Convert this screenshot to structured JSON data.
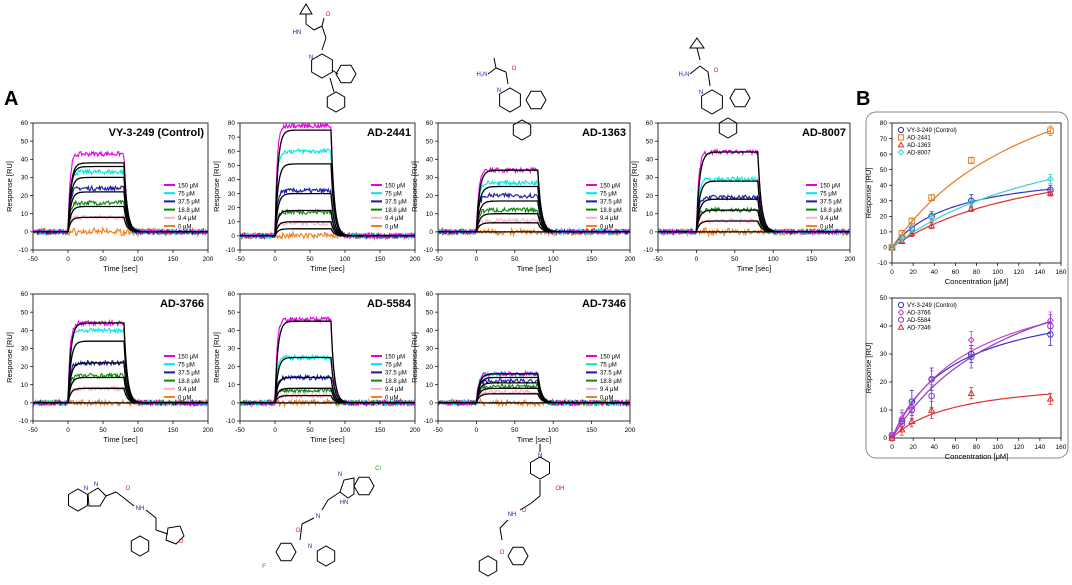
{
  "panel_labels": [
    "A",
    "B"
  ],
  "colors": {
    "c150": "#e600e6",
    "c75": "#00e5e5",
    "c37": "#1a1aa6",
    "c18": "#0a8a0a",
    "c9": "#ffb0c8",
    "c0": "#f08020",
    "fit": "#000000"
  },
  "chart_data": [
    {
      "id": "vy",
      "type": "line",
      "title": "VY-3-249 (Control)",
      "xlabel": "Time [sec]",
      "ylabel": "Response [RU]",
      "xlim": [
        -50,
        200
      ],
      "ylim": [
        -10,
        60
      ],
      "xticks": [
        -50,
        0,
        50,
        100,
        150,
        200
      ],
      "yticks": [
        -10,
        0,
        10,
        20,
        30,
        40,
        50,
        60
      ],
      "legend_position": "right",
      "assoc_start": 0,
      "assoc_end": 80,
      "series": [
        {
          "name": "150 μM",
          "color_key": "c150",
          "plateau": 43,
          "fit": 38
        },
        {
          "name": "75 μM",
          "color_key": "c75",
          "plateau": 33,
          "fit": 36
        },
        {
          "name": "37.5 μM",
          "color_key": "c37",
          "plateau": 24,
          "fit": 30
        },
        {
          "name": "18.8 μM",
          "color_key": "c18",
          "plateau": 16,
          "fit": 22
        },
        {
          "name": "9.4 μM",
          "color_key": "c9",
          "plateau": 8,
          "fit": 14
        },
        {
          "name": "0 μM",
          "color_key": "c0",
          "plateau": 0,
          "fit": 8
        }
      ]
    },
    {
      "id": "ad2441",
      "type": "line",
      "title": "AD-2441",
      "xlabel": "Time [sec]",
      "ylabel": "Response [RU]",
      "xlim": [
        -50,
        200
      ],
      "ylim": [
        -10,
        80
      ],
      "xticks": [
        -50,
        0,
        50,
        100,
        150,
        200
      ],
      "yticks": [
        -10,
        0,
        10,
        20,
        30,
        40,
        50,
        60,
        70,
        80
      ],
      "legend_position": "right",
      "assoc_start": 0,
      "assoc_end": 80,
      "series": [
        {
          "name": "150 μM",
          "color_key": "c150",
          "plateau": 78,
          "fit": 75
        },
        {
          "name": "75 μM",
          "color_key": "c75",
          "plateau": 60,
          "fit": 51
        },
        {
          "name": "37.5 μM",
          "color_key": "c37",
          "plateau": 32,
          "fit": 30
        },
        {
          "name": "18.8 μM",
          "color_key": "c18",
          "plateau": 17,
          "fit": 18
        },
        {
          "name": "9.4 μM",
          "color_key": "c9",
          "plateau": 9,
          "fit": 10
        },
        {
          "name": "0 μM",
          "color_key": "c0",
          "plateau": 0,
          "fit": 5
        }
      ]
    },
    {
      "id": "ad1363",
      "type": "line",
      "title": "AD-1363",
      "xlabel": "Time [sec]",
      "ylabel": "Response [RU]",
      "xlim": [
        -50,
        200
      ],
      "ylim": [
        -10,
        60
      ],
      "xticks": [
        -50,
        0,
        50,
        100,
        150,
        200
      ],
      "yticks": [
        -10,
        0,
        10,
        20,
        30,
        40,
        50,
        60
      ],
      "legend_position": "right",
      "assoc_start": 0,
      "assoc_end": 80,
      "series": [
        {
          "name": "150 μM",
          "color_key": "c150",
          "plateau": 34,
          "fit": 34
        },
        {
          "name": "75 μM",
          "color_key": "c75",
          "plateau": 27,
          "fit": 25
        },
        {
          "name": "37.5 μM",
          "color_key": "c37",
          "plateau": 20,
          "fit": 17
        },
        {
          "name": "18.8 μM",
          "color_key": "c18",
          "plateau": 12,
          "fit": 10
        },
        {
          "name": "9.4 μM",
          "color_key": "c9",
          "plateau": 6,
          "fit": 5
        },
        {
          "name": "0 μM",
          "color_key": "c0",
          "plateau": 0,
          "fit": 0
        }
      ]
    },
    {
      "id": "ad8007",
      "type": "line",
      "title": "AD-8007",
      "xlabel": "Time [sec]",
      "ylabel": "Response [RU]",
      "xlim": [
        -50,
        200
      ],
      "ylim": [
        -10,
        60
      ],
      "xticks": [
        -50,
        0,
        50,
        100,
        150,
        200
      ],
      "yticks": [
        -10,
        0,
        10,
        20,
        30,
        40,
        50,
        60
      ],
      "legend_position": "right",
      "assoc_start": 0,
      "assoc_end": 80,
      "series": [
        {
          "name": "150 μM",
          "color_key": "c150",
          "plateau": 44,
          "fit": 44
        },
        {
          "name": "75 μM",
          "color_key": "c75",
          "plateau": 29,
          "fit": 28
        },
        {
          "name": "37.5 μM",
          "color_key": "c37",
          "plateau": 19,
          "fit": 18
        },
        {
          "name": "18.8 μM",
          "color_key": "c18",
          "plateau": 12,
          "fit": 12
        },
        {
          "name": "9.4 μM",
          "color_key": "c9",
          "plateau": 6,
          "fit": 6
        },
        {
          "name": "0 μM",
          "color_key": "c0",
          "plateau": 0,
          "fit": 0
        }
      ]
    },
    {
      "id": "ad3766",
      "type": "line",
      "title": "AD-3766",
      "xlabel": "Time [sec]",
      "ylabel": "Response [RU]",
      "xlim": [
        -50,
        200
      ],
      "ylim": [
        -10,
        60
      ],
      "xticks": [
        -50,
        0,
        50,
        100,
        150,
        200
      ],
      "yticks": [
        -10,
        0,
        10,
        20,
        30,
        40,
        50,
        60
      ],
      "legend_position": "right",
      "assoc_start": 0,
      "assoc_end": 80,
      "series": [
        {
          "name": "150 μM",
          "color_key": "c150",
          "plateau": 44,
          "fit": 44
        },
        {
          "name": "75 μM",
          "color_key": "c75",
          "plateau": 40,
          "fit": 34
        },
        {
          "name": "37.5 μM",
          "color_key": "c37",
          "plateau": 22,
          "fit": 22
        },
        {
          "name": "18.8 μM",
          "color_key": "c18",
          "plateau": 15,
          "fit": 14
        },
        {
          "name": "9.4 μM",
          "color_key": "c9",
          "plateau": 8,
          "fit": 8
        },
        {
          "name": "0 μM",
          "color_key": "c0",
          "plateau": 0,
          "fit": 0
        }
      ]
    },
    {
      "id": "ad5584",
      "type": "line",
      "title": "AD-5584",
      "xlabel": "Time [sec]",
      "ylabel": "Response [RU]",
      "xlim": [
        -50,
        200
      ],
      "ylim": [
        -10,
        60
      ],
      "xticks": [
        -50,
        0,
        50,
        100,
        150,
        200
      ],
      "yticks": [
        -10,
        0,
        10,
        20,
        30,
        40,
        50,
        60
      ],
      "legend_position": "right",
      "assoc_start": 0,
      "assoc_end": 80,
      "series": [
        {
          "name": "150 μM",
          "color_key": "c150",
          "plateau": 46,
          "fit": 45
        },
        {
          "name": "75 μM",
          "color_key": "c75",
          "plateau": 25,
          "fit": 25
        },
        {
          "name": "37.5 μM",
          "color_key": "c37",
          "plateau": 14,
          "fit": 14
        },
        {
          "name": "18.8 μM",
          "color_key": "c18",
          "plateau": 7,
          "fit": 8
        },
        {
          "name": "9.4 μM",
          "color_key": "c9",
          "plateau": 4,
          "fit": 4
        },
        {
          "name": "0 μM",
          "color_key": "c0",
          "plateau": 0,
          "fit": 0
        }
      ]
    },
    {
      "id": "ad7346",
      "type": "line",
      "title": "AD-7346",
      "xlabel": "Time [sec]",
      "ylabel": "Response [RU]",
      "xlim": [
        -50,
        200
      ],
      "ylim": [
        -10,
        60
      ],
      "xticks": [
        -50,
        0,
        50,
        100,
        150,
        200
      ],
      "yticks": [
        -10,
        0,
        10,
        20,
        30,
        40,
        50,
        60
      ],
      "legend_position": "right",
      "assoc_start": 0,
      "assoc_end": 80,
      "series": [
        {
          "name": "150 μM",
          "color_key": "c150",
          "plateau": 16,
          "fit": 16
        },
        {
          "name": "75 μM",
          "color_key": "c75",
          "plateau": 16,
          "fit": 14
        },
        {
          "name": "37.5 μM",
          "color_key": "c37",
          "plateau": 12,
          "fit": 11
        },
        {
          "name": "18.8 μM",
          "color_key": "c18",
          "plateau": 9,
          "fit": 8
        },
        {
          "name": "9.4 μM",
          "color_key": "c9",
          "plateau": 6,
          "fit": 5
        },
        {
          "name": "0 μM",
          "color_key": "c0",
          "plateau": 0,
          "fit": 0
        }
      ]
    },
    {
      "id": "b_top",
      "type": "scatter",
      "title": "",
      "xlabel": "Concentration [μM]",
      "ylabel": "Response [RU]",
      "xlim": [
        0,
        160
      ],
      "ylim": [
        -10,
        80
      ],
      "xticks": [
        0,
        20,
        40,
        60,
        80,
        100,
        120,
        140,
        160
      ],
      "yticks": [
        -10,
        0,
        10,
        20,
        30,
        40,
        50,
        60,
        70,
        80
      ],
      "legend_position": "top-left",
      "x": [
        0,
        9.4,
        18.8,
        37.5,
        75,
        150
      ],
      "series": [
        {
          "name": "VY-3-249 (Control)",
          "color": "#3333cc",
          "marker": "circle",
          "values": [
            0,
            6,
            12,
            20,
            30,
            37
          ],
          "err": [
            1,
            2,
            3,
            3,
            4,
            3
          ],
          "bmax": 52,
          "kd": 58
        },
        {
          "name": "AD-2441",
          "color": "#e87b1e",
          "marker": "square",
          "values": [
            0,
            9,
            17,
            32,
            56,
            75
          ],
          "err": [
            1,
            2,
            2,
            2,
            2,
            3
          ],
          "bmax": 150,
          "kd": 150
        },
        {
          "name": "AD-1363",
          "color": "#e03030",
          "marker": "triangle",
          "values": [
            0,
            4,
            9,
            14,
            25,
            35
          ],
          "err": [
            1,
            1,
            2,
            2,
            2,
            2
          ],
          "bmax": 70,
          "kd": 145
        },
        {
          "name": "AD-8007",
          "color": "#40d0d0",
          "marker": "diamond",
          "values": [
            0,
            6,
            12,
            19,
            29,
            44
          ],
          "err": [
            1,
            2,
            2,
            2,
            2,
            3
          ],
          "bmax": 95,
          "kd": 175
        }
      ]
    },
    {
      "id": "b_bottom",
      "type": "scatter",
      "title": "",
      "xlabel": "Concentration [μM]",
      "ylabel": "Response [RU]",
      "xlim": [
        0,
        160
      ],
      "ylim": [
        0,
        50
      ],
      "xticks": [
        0,
        20,
        40,
        60,
        80,
        100,
        120,
        140,
        160
      ],
      "yticks": [
        0,
        10,
        20,
        30,
        40,
        50
      ],
      "legend_position": "top-left",
      "x": [
        0,
        9.4,
        18.8,
        37.5,
        75,
        150
      ],
      "series": [
        {
          "name": "VY-3-249 (Control)",
          "color": "#3333cc",
          "marker": "circle",
          "values": [
            1,
            6,
            13,
            21,
            30,
            37
          ],
          "err": [
            1,
            3,
            4,
            4,
            3,
            4
          ],
          "bmax": 52,
          "kd": 58
        },
        {
          "name": "AD-3766",
          "color": "#d040d0",
          "marker": "diamond",
          "values": [
            1,
            7,
            11,
            21,
            35,
            42
          ],
          "err": [
            1,
            3,
            3,
            3,
            3,
            3
          ],
          "bmax": 62,
          "kd": 75
        },
        {
          "name": "AD-5584",
          "color": "#8a3fc0",
          "marker": "circle",
          "values": [
            0,
            5,
            10,
            15,
            29,
            40
          ],
          "err": [
            1,
            2,
            3,
            4,
            4,
            4
          ],
          "bmax": 75,
          "kd": 120
        },
        {
          "name": "AD-7346",
          "color": "#e03030",
          "marker": "triangle",
          "values": [
            0,
            3,
            6,
            10,
            16,
            14
          ],
          "err": [
            1,
            2,
            2,
            3,
            2,
            2
          ],
          "bmax": 22,
          "kd": 60
        }
      ]
    }
  ],
  "structures": [
    {
      "id": "s2441",
      "name": "AD-2441 structure",
      "labels": [
        "HN",
        "N",
        "O"
      ]
    },
    {
      "id": "s1363",
      "name": "AD-1363 structure",
      "labels": [
        "H₂N",
        "N",
        "O"
      ]
    },
    {
      "id": "s8007",
      "name": "AD-8007 structure",
      "labels": [
        "H₂N",
        "N",
        "O"
      ]
    },
    {
      "id": "s3766",
      "name": "AD-3766 structure",
      "labels": [
        "N",
        "N",
        "O",
        "NH",
        "O"
      ]
    },
    {
      "id": "s5584",
      "name": "AD-5584 structure",
      "labels": [
        "Cl",
        "N",
        "HN",
        "O",
        "N",
        "N",
        "F"
      ]
    },
    {
      "id": "s7346",
      "name": "AD-7346 structure",
      "labels": [
        "N",
        "OH",
        "O",
        "NH",
        "O"
      ]
    }
  ]
}
